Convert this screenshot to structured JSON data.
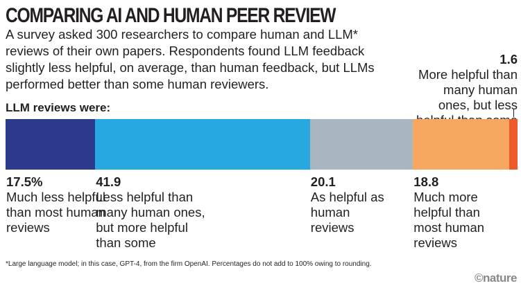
{
  "chart_data": {
    "type": "bar",
    "orientation": "horizontal-stacked",
    "title": "COMPARING AI AND HUMAN PEER REVIEW",
    "subtitle": "A survey asked 300 researchers to compare human and LLM* reviews of their own papers. Respondents found LLM feedback slightly less helpful, on average, than human feedback, but LLMs performed better than some human reviewers.",
    "lead": "LLM reviews were:",
    "unit": "%",
    "segments": [
      {
        "value": 17.5,
        "value_label": "17.5%",
        "label": "Much less helpful than most human reviews",
        "color": "#2b3a8c"
      },
      {
        "value": 41.9,
        "value_label": "41.9",
        "label": "Less helpful than many human ones, but more helpful than some",
        "color": "#27a8e0"
      },
      {
        "value": 20.1,
        "value_label": "20.1",
        "label": "As helpful as human reviews",
        "color": "#a9b5c1"
      },
      {
        "value": 18.8,
        "value_label": "18.8",
        "label": "Much more helpful than most human reviews",
        "color": "#f7a75f"
      },
      {
        "value": 1.6,
        "value_label": "1.6",
        "label": "More helpful than many human ones, but less helpful than some",
        "color": "#ee5a29"
      }
    ],
    "footnote": "*Large language model; in this case, GPT-4, from the firm OpenAI. Percentages do not add to 100% owing to rounding.",
    "source": "©nature"
  }
}
